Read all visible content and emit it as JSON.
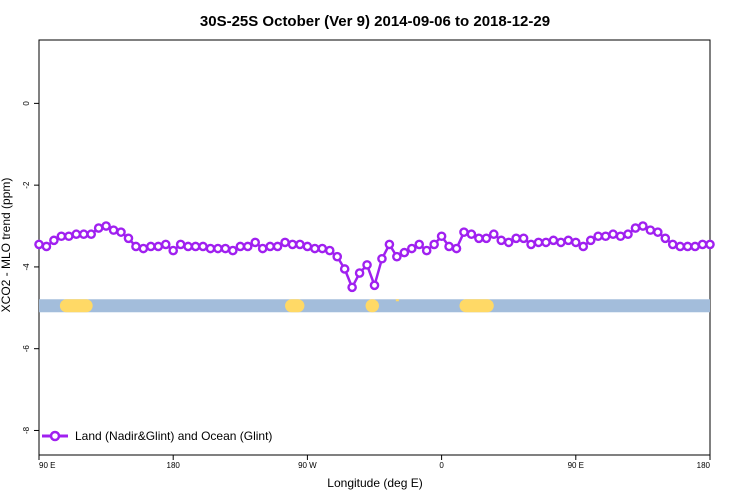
{
  "chart_data": {
    "type": "line",
    "title": "30S-25S October (Ver 9)   2014-09-06 to 2018-12-29",
    "xlabel": "Longitude (deg E)",
    "ylabel": "XCO2 - MLO trend (ppm)",
    "x_tick_labels": [
      "90 E",
      "180",
      "90 W",
      "0",
      "90 E",
      "180"
    ],
    "x_range_labels": [
      "90 E",
      "180"
    ],
    "ylim": [
      -8.6,
      1.55
    ],
    "y_ticks": [
      0,
      -2,
      -4,
      -6,
      -8
    ],
    "y_tick_labels": [
      "0",
      "-2",
      "-4",
      "-6",
      "-8"
    ],
    "grid": false,
    "legend_position": "bottom-left",
    "colors": {
      "series": "#a020f0",
      "land": "#ffd966",
      "ocean": "#a3bddb"
    },
    "series": [
      {
        "name": "Land (Nadir&Glint) and Ocean (Glint)",
        "x": [
          90,
          95,
          100,
          105,
          110,
          115,
          120,
          125,
          130,
          135,
          140,
          145,
          150,
          155,
          160,
          165,
          170,
          175,
          180,
          185,
          190,
          195,
          200,
          205,
          210,
          215,
          220,
          225,
          230,
          235,
          240,
          245,
          250,
          255,
          260,
          265,
          270,
          275,
          280,
          285,
          290,
          295,
          300,
          305,
          310,
          315,
          320,
          325,
          330,
          335,
          340,
          345,
          350,
          355,
          360,
          365,
          370,
          375,
          380,
          385,
          390,
          395,
          400,
          405,
          410,
          415,
          420,
          425,
          430,
          435,
          440,
          445,
          450,
          455,
          460,
          465,
          470,
          475,
          480,
          485,
          490,
          495,
          500,
          505,
          510,
          515,
          520,
          525,
          530,
          535,
          540
        ],
        "values": [
          -3.45,
          -3.5,
          -3.35,
          -3.25,
          -3.25,
          -3.2,
          -3.2,
          -3.2,
          -3.05,
          -3.0,
          -3.1,
          -3.15,
          -3.3,
          -3.5,
          -3.55,
          -3.5,
          -3.5,
          -3.45,
          -3.6,
          -3.45,
          -3.5,
          -3.5,
          -3.5,
          -3.55,
          -3.55,
          -3.55,
          -3.6,
          -3.5,
          -3.5,
          -3.4,
          -3.55,
          -3.5,
          -3.5,
          -3.4,
          -3.45,
          -3.45,
          -3.5,
          -3.55,
          -3.55,
          -3.6,
          -3.75,
          -4.05,
          -4.5,
          -4.15,
          -3.95,
          -4.45,
          -3.8,
          -3.45,
          -3.75,
          -3.65,
          -3.55,
          -3.45,
          -3.6,
          -3.45,
          -3.25,
          -3.5,
          -3.55,
          -3.15,
          -3.2,
          -3.3,
          -3.3,
          -3.2,
          -3.35,
          -3.4,
          -3.3,
          -3.3,
          -3.45,
          -3.4,
          -3.4,
          -3.35,
          -3.4,
          -3.35,
          -3.4,
          -3.5,
          -3.35,
          -3.25,
          -3.25,
          -3.2,
          -3.25,
          -3.2,
          -3.05,
          -3.0,
          -3.1,
          -3.15,
          -3.3,
          -3.45,
          -3.5,
          -3.5,
          -3.5,
          -3.45,
          -3.45
        ]
      }
    ],
    "surface_band": {
      "y": -4.95,
      "land_segments": [
        [
          104,
          126
        ],
        [
          255,
          268
        ],
        [
          309,
          318
        ],
        [
          372,
          395
        ]
      ],
      "land_dots": [
        [
          330,
          331
        ]
      ]
    },
    "x_tick_values": [
      90,
      180,
      270,
      360,
      450,
      540
    ]
  }
}
